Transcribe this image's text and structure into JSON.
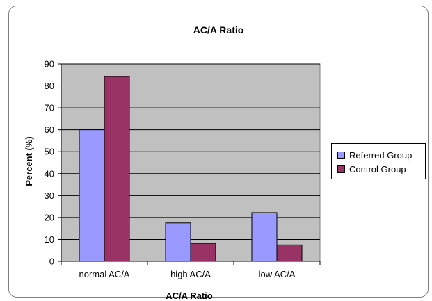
{
  "chart_data": {
    "type": "bar",
    "title": "AC/A Ratio",
    "xlabel": "AC/A Ratio",
    "ylabel": "Percent (%)",
    "categories": [
      "normal AC/A",
      "high AC/A",
      "low AC/A"
    ],
    "series": [
      {
        "name": "Referred Group",
        "values": [
          60,
          17.5,
          22.2
        ],
        "color": "#9999ff"
      },
      {
        "name": "Control Group",
        "values": [
          84.3,
          8.2,
          7.5
        ],
        "color": "#993366"
      }
    ],
    "ylim": [
      0,
      90
    ],
    "yticks": [
      0,
      10,
      20,
      30,
      40,
      50,
      60,
      70,
      80,
      90
    ],
    "grid": true,
    "plot_background": "#c0c0c0",
    "legend_position": "right"
  }
}
